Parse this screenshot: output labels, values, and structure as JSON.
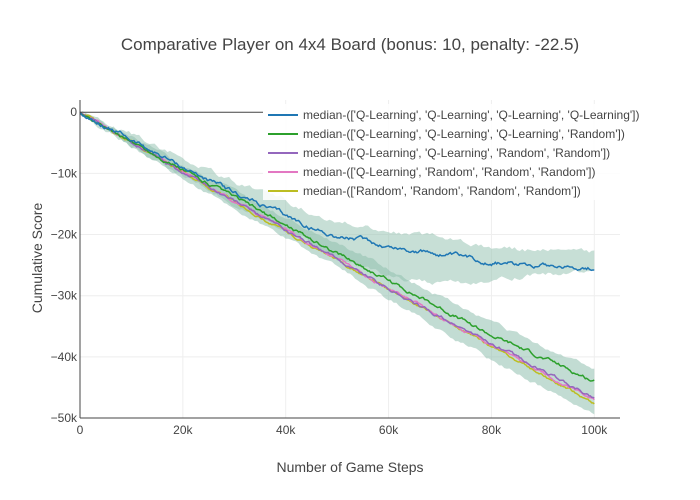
{
  "chart_data": {
    "type": "line",
    "title": "Comparative Player on 4x4 Board (bonus: 10, penalty: -22.5)",
    "xlabel": "Number of Game Steps",
    "ylabel": "Cumulative Score",
    "xlim": [
      0,
      105000
    ],
    "ylim": [
      -50000,
      2000
    ],
    "x_ticks": [
      0,
      20000,
      40000,
      60000,
      80000,
      100000
    ],
    "x_tick_labels": [
      "0",
      "20k",
      "40k",
      "60k",
      "80k",
      "100k"
    ],
    "y_ticks": [
      0,
      -10000,
      -20000,
      -30000,
      -40000,
      -50000
    ],
    "y_tick_labels": [
      "0",
      "−10k",
      "−20k",
      "−30k",
      "−40k",
      "−50k"
    ],
    "grid": true,
    "legend_position": "top-right",
    "series": [
      {
        "name": "median-(['Q-Learning', 'Q-Learning', 'Q-Learning', 'Q-Learning'])",
        "color": "#1f77b4",
        "x": [
          0,
          10000,
          20000,
          30000,
          40000,
          45000,
          50000,
          55000,
          60000,
          65000,
          70000,
          75000,
          80000,
          85000,
          90000,
          95000,
          100000
        ],
        "y": [
          0,
          -4500,
          -9000,
          -13200,
          -17000,
          -19000,
          -20300,
          -21000,
          -22000,
          -22700,
          -23200,
          -24000,
          -24500,
          -24800,
          -24700,
          -25200,
          -25500
        ],
        "band_lower": [
          0,
          -5500,
          -10500,
          -15000,
          -19500,
          -22000,
          -24000,
          -25500,
          -26500,
          -27500,
          -28000,
          -28000,
          -27500,
          -27000,
          -26500,
          -26200,
          -26500
        ],
        "band_upper": [
          0,
          -3500,
          -7500,
          -11500,
          -14500,
          -16500,
          -17500,
          -18500,
          -19500,
          -20000,
          -20500,
          -21000,
          -22000,
          -22500,
          -22700,
          -22800,
          -23000
        ]
      },
      {
        "name": "median-(['Q-Learning', 'Q-Learning', 'Q-Learning', 'Random'])",
        "color": "#2ca02c",
        "x": [
          0,
          10000,
          20000,
          30000,
          40000,
          50000,
          60000,
          70000,
          80000,
          90000,
          100000
        ],
        "y": [
          0,
          -4800,
          -9500,
          -14000,
          -18500,
          -23000,
          -27500,
          -32000,
          -36500,
          -40200,
          -44000
        ]
      },
      {
        "name": "median-(['Q-Learning', 'Q-Learning', 'Random', 'Random'])",
        "color": "#9467bd",
        "x": [
          0,
          10000,
          20000,
          30000,
          40000,
          50000,
          60000,
          70000,
          80000,
          90000,
          100000
        ],
        "y": [
          0,
          -5000,
          -9800,
          -14600,
          -19300,
          -24000,
          -28800,
          -33500,
          -37900,
          -42300,
          -46800
        ]
      },
      {
        "name": "median-(['Q-Learning', 'Random', 'Random', 'Random'])",
        "color": "#e377c2",
        "x": [
          0,
          10000,
          20000,
          30000,
          40000,
          50000,
          60000,
          70000,
          80000,
          90000,
          100000
        ],
        "y": [
          0,
          -4900,
          -9700,
          -14500,
          -19200,
          -24000,
          -28700,
          -33400,
          -38100,
          -42700,
          -47200
        ]
      },
      {
        "name": "median-(['Random', 'Random', 'Random', 'Random'])",
        "color": "#bcbd22",
        "x": [
          0,
          10000,
          20000,
          30000,
          40000,
          50000,
          60000,
          70000,
          80000,
          90000,
          100000
        ],
        "y": [
          0,
          -4900,
          -9800,
          -14600,
          -19500,
          -24300,
          -29000,
          -33700,
          -38400,
          -43000,
          -47600
        ]
      }
    ],
    "shared_band": {
      "color": "#8fbfae",
      "x": [
        0,
        10000,
        20000,
        30000,
        40000,
        50000,
        60000,
        70000,
        80000,
        90000,
        100000
      ],
      "lower": [
        0,
        -5600,
        -10800,
        -15800,
        -20600,
        -25500,
        -30500,
        -35500,
        -40500,
        -45000,
        -49500
      ],
      "upper": [
        0,
        -4000,
        -8500,
        -12800,
        -17200,
        -21300,
        -25500,
        -30000,
        -34500,
        -38500,
        -42000
      ]
    }
  }
}
